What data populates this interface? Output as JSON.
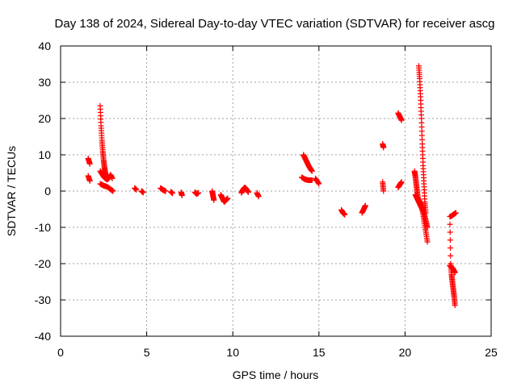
{
  "chart_data": {
    "type": "scatter",
    "title": "Day 138 of 2024, Sidereal Day-to-day VTEC variation (SDTVAR) for receiver ascg",
    "xlabel": "GPS time / hours",
    "ylabel": "SDTVAR / TECUs",
    "xlim": [
      0,
      25
    ],
    "ylim": [
      -40,
      40
    ],
    "xticks": [
      0,
      5,
      10,
      15,
      20,
      25
    ],
    "yticks": [
      -40,
      -30,
      -20,
      -10,
      0,
      10,
      20,
      30,
      40
    ],
    "grid": true,
    "marker": "+",
    "color": "#ff0000",
    "tracks": [
      {
        "x": [
          1.6,
          1.7
        ],
        "y": [
          9,
          7.5
        ]
      },
      {
        "x": [
          1.6,
          1.7
        ],
        "y": [
          4.2,
          2.8
        ]
      },
      {
        "x": [
          2.3,
          2.35,
          2.4,
          2.45,
          2.5,
          2.55,
          2.6,
          2.65
        ],
        "y": [
          23.5,
          18,
          14,
          11,
          8.5,
          6.5,
          5,
          4
        ]
      },
      {
        "x": [
          2.3,
          2.4,
          2.5,
          2.6,
          2.7,
          2.8,
          2.9,
          3.0
        ],
        "y": [
          5.5,
          4.8,
          4,
          3.5,
          3.2,
          3.5,
          4.5,
          3.5
        ]
      },
      {
        "x": [
          2.3,
          2.5,
          2.7,
          2.9,
          3.05
        ],
        "y": [
          2,
          1.5,
          1.2,
          0.5,
          0
        ]
      },
      {
        "x": [
          4.3,
          4.4
        ],
        "y": [
          0.8,
          0.4
        ]
      },
      {
        "x": [
          4.7,
          4.8
        ],
        "y": [
          0,
          -0.4
        ]
      },
      {
        "x": [
          5.8,
          5.9,
          6.0,
          6.1
        ],
        "y": [
          0.8,
          0.5,
          0.2,
          0
        ]
      },
      {
        "x": [
          6.4,
          6.5
        ],
        "y": [
          -0.2,
          -0.6
        ]
      },
      {
        "x": [
          7.0,
          7.05
        ],
        "y": [
          -0.3,
          -1.2
        ]
      },
      {
        "x": [
          7.8,
          7.9,
          8.0
        ],
        "y": [
          -0.3,
          -0.8,
          -0.5
        ]
      },
      {
        "x": [
          8.8,
          8.85,
          8.9
        ],
        "y": [
          0,
          -1.2,
          -2.5
        ]
      },
      {
        "x": [
          9.3,
          9.4,
          9.5,
          9.6,
          9.7
        ],
        "y": [
          -1,
          -2,
          -3,
          -2.5,
          -2
        ]
      },
      {
        "x": [
          10.5,
          10.6,
          10.7,
          10.8,
          10.9
        ],
        "y": [
          -0.5,
          0.5,
          1,
          0.5,
          -0.3
        ]
      },
      {
        "x": [
          11.4,
          11.5
        ],
        "y": [
          -0.5,
          -1.5
        ]
      },
      {
        "x": [
          14.1,
          14.2,
          14.3,
          14.4,
          14.5,
          14.6
        ],
        "y": [
          10,
          9,
          8,
          7,
          6.2,
          5.5
        ]
      },
      {
        "x": [
          14.0,
          14.2,
          14.4,
          14.6
        ],
        "y": [
          3.8,
          3.2,
          3,
          3
        ]
      },
      {
        "x": [
          14.8,
          15.0
        ],
        "y": [
          3.5,
          2
        ]
      },
      {
        "x": [
          16.3,
          16.4,
          16.5
        ],
        "y": [
          -5.2,
          -6,
          -6.5
        ]
      },
      {
        "x": [
          17.5,
          17.6,
          17.7
        ],
        "y": [
          -6,
          -5,
          -4
        ]
      },
      {
        "x": [
          18.7,
          18.75
        ],
        "y": [
          13,
          12
        ]
      },
      {
        "x": [
          18.7,
          18.75
        ],
        "y": [
          2.5,
          0
        ]
      },
      {
        "x": [
          19.6,
          19.7,
          19.8
        ],
        "y": [
          21.5,
          20.5,
          19.5
        ]
      },
      {
        "x": [
          19.6,
          19.7,
          19.8
        ],
        "y": [
          1,
          1.8,
          2.5
        ]
      },
      {
        "x": [
          20.8,
          20.85,
          20.9,
          20.95,
          21.0,
          21.05,
          21.1,
          21.15,
          21.2
        ],
        "y": [
          34.5,
          31,
          26,
          20,
          13,
          7,
          2,
          -3,
          -6
        ]
      },
      {
        "x": [
          20.55,
          20.6,
          20.65,
          20.7,
          20.75,
          20.8,
          20.85,
          20.9
        ],
        "y": [
          5.5,
          4,
          2,
          0,
          -2,
          -2.5,
          -3,
          -4
        ]
      },
      {
        "x": [
          20.6,
          20.7,
          20.8,
          20.9,
          21.0,
          21.1,
          21.2,
          21.3
        ],
        "y": [
          -1,
          -2,
          -3,
          -4,
          -5,
          -6,
          -8,
          -10
        ]
      },
      {
        "x": [
          20.9,
          21.0,
          21.1,
          21.2,
          21.3
        ],
        "y": [
          -3,
          -5,
          -8,
          -11,
          -14
        ]
      },
      {
        "x": [
          22.6,
          22.65,
          22.7,
          22.75,
          22.8,
          22.85,
          22.9
        ],
        "y": [
          -7,
          -20,
          -23,
          -25,
          -27,
          -29,
          -31.5
        ]
      },
      {
        "x": [
          22.6,
          22.7,
          22.8,
          22.9
        ],
        "y": [
          -20.5,
          -21,
          -21.5,
          -22.5
        ]
      },
      {
        "x": [
          22.65,
          22.8,
          22.95
        ],
        "y": [
          -7,
          -6.5,
          -6
        ]
      }
    ]
  }
}
